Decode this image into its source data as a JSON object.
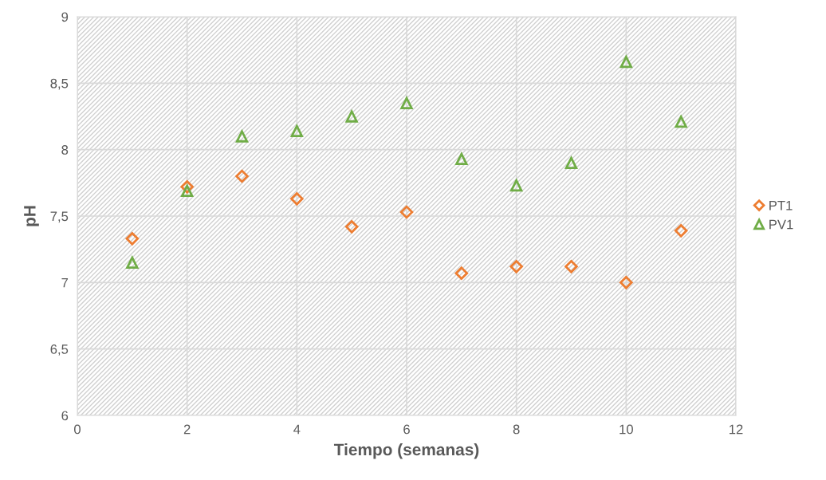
{
  "chart_data": {
    "type": "scatter",
    "xlabel": "Tiempo (semanas)",
    "ylabel": "pH",
    "x": [
      1,
      2,
      3,
      4,
      5,
      6,
      7,
      8,
      9,
      10,
      11
    ],
    "series": [
      {
        "name": "PT1",
        "color": "#ed7d31",
        "marker": "diamond",
        "values": [
          7.33,
          7.72,
          7.8,
          7.63,
          7.42,
          7.53,
          7.07,
          7.12,
          7.12,
          7.0,
          7.39
        ]
      },
      {
        "name": "PV1",
        "color": "#70ad47",
        "marker": "triangle",
        "values": [
          7.15,
          7.69,
          8.1,
          8.14,
          8.25,
          8.35,
          7.93,
          7.73,
          7.9,
          8.66,
          8.21
        ]
      }
    ],
    "xlim": [
      0,
      12
    ],
    "xticks": [
      0,
      2,
      4,
      6,
      8,
      10,
      12
    ],
    "ylim": [
      6,
      9
    ],
    "yticks": [
      6,
      {
        "value": 6.5,
        "label": "6,5"
      },
      7,
      {
        "value": 7.5,
        "label": "7,5"
      },
      8,
      {
        "value": 8.5,
        "label": "8,5"
      },
      9
    ],
    "grid": true,
    "legend": "right"
  }
}
